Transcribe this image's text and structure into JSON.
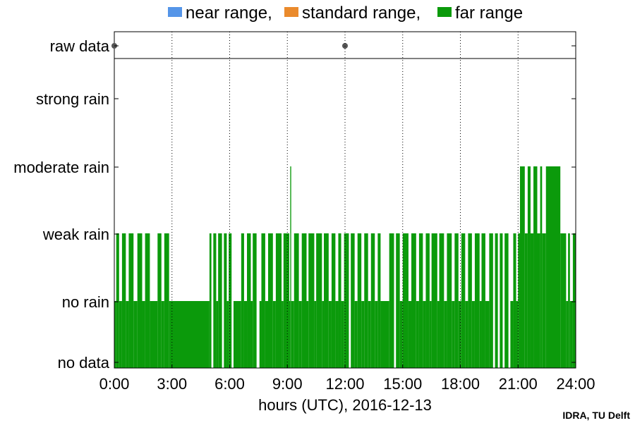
{
  "chart_data": {
    "type": "area",
    "legend": {
      "placement": "top",
      "items": [
        {
          "label": "near range,",
          "color": "#5595e8"
        },
        {
          "label": "standard range,",
          "color": "#ea8a2c"
        },
        {
          "label": "far range",
          "color": "#0b9a0b"
        }
      ]
    },
    "xlabel": "hours (UTC), 2016-12-13",
    "xlim": [
      0,
      24
    ],
    "xticks": [
      0,
      3,
      6,
      9,
      12,
      15,
      18,
      21,
      24
    ],
    "xtick_labels": [
      "0:00",
      "3:00",
      "6:00",
      "9:00",
      "12:00",
      "15:00",
      "18:00",
      "21:00",
      "24:00"
    ],
    "y_levels": [
      "no data",
      "no rain",
      "weak rain",
      "moderate rain",
      "strong rain"
    ],
    "raw_data_label": "raw data",
    "raw_data_points_hours": [
      0,
      12
    ],
    "grid": "vertical dotted at each x tick",
    "series": [
      {
        "name": "far range",
        "color": "#0b9a0b",
        "segments": [
          [
            0.0,
            1
          ],
          [
            0.1,
            2
          ],
          [
            0.25,
            1
          ],
          [
            0.4,
            2
          ],
          [
            0.6,
            1
          ],
          [
            0.75,
            2
          ],
          [
            1.0,
            1
          ],
          [
            1.2,
            2
          ],
          [
            1.45,
            1
          ],
          [
            1.6,
            2
          ],
          [
            1.85,
            1
          ],
          [
            2.25,
            2
          ],
          [
            2.45,
            1
          ],
          [
            2.6,
            2
          ],
          [
            2.85,
            1
          ],
          [
            4.95,
            2
          ],
          [
            5.05,
            0
          ],
          [
            5.15,
            2
          ],
          [
            5.3,
            1
          ],
          [
            5.4,
            2
          ],
          [
            5.6,
            0
          ],
          [
            5.7,
            2
          ],
          [
            5.85,
            1
          ],
          [
            5.95,
            2
          ],
          [
            6.1,
            0
          ],
          [
            6.2,
            1
          ],
          [
            6.6,
            2
          ],
          [
            6.75,
            1
          ],
          [
            6.9,
            2
          ],
          [
            7.1,
            1
          ],
          [
            7.2,
            2
          ],
          [
            7.4,
            0
          ],
          [
            7.55,
            1
          ],
          [
            7.65,
            2
          ],
          [
            7.85,
            1
          ],
          [
            8.0,
            2
          ],
          [
            8.25,
            1
          ],
          [
            8.4,
            2
          ],
          [
            8.7,
            1
          ],
          [
            8.8,
            2
          ],
          [
            9.1,
            1
          ],
          [
            9.15,
            3
          ],
          [
            9.2,
            1
          ],
          [
            9.35,
            2
          ],
          [
            9.6,
            1
          ],
          [
            9.75,
            2
          ],
          [
            10.0,
            1
          ],
          [
            10.1,
            2
          ],
          [
            10.4,
            1
          ],
          [
            10.5,
            2
          ],
          [
            10.8,
            1
          ],
          [
            10.9,
            2
          ],
          [
            11.15,
            1
          ],
          [
            11.3,
            2
          ],
          [
            11.5,
            1
          ],
          [
            11.65,
            2
          ],
          [
            11.8,
            1
          ],
          [
            11.95,
            2
          ],
          [
            12.2,
            0
          ],
          [
            12.3,
            2
          ],
          [
            12.5,
            1
          ],
          [
            12.65,
            2
          ],
          [
            12.85,
            1
          ],
          [
            13.0,
            2
          ],
          [
            13.2,
            1
          ],
          [
            13.35,
            2
          ],
          [
            13.55,
            1
          ],
          [
            13.7,
            2
          ],
          [
            13.85,
            1
          ],
          [
            14.3,
            2
          ],
          [
            14.55,
            0
          ],
          [
            14.65,
            2
          ],
          [
            14.85,
            1
          ],
          [
            15.0,
            2
          ],
          [
            15.3,
            1
          ],
          [
            15.45,
            2
          ],
          [
            15.7,
            1
          ],
          [
            15.85,
            2
          ],
          [
            16.05,
            1
          ],
          [
            16.2,
            2
          ],
          [
            16.4,
            1
          ],
          [
            16.5,
            2
          ],
          [
            16.8,
            1
          ],
          [
            16.9,
            2
          ],
          [
            17.15,
            1
          ],
          [
            17.3,
            2
          ],
          [
            17.55,
            1
          ],
          [
            17.7,
            2
          ],
          [
            17.9,
            1
          ],
          [
            18.05,
            2
          ],
          [
            18.25,
            1
          ],
          [
            18.4,
            2
          ],
          [
            18.6,
            1
          ],
          [
            18.75,
            2
          ],
          [
            19.0,
            1
          ],
          [
            19.1,
            2
          ],
          [
            19.3,
            1
          ],
          [
            19.5,
            2
          ],
          [
            19.7,
            0
          ],
          [
            19.8,
            2
          ],
          [
            19.95,
            0
          ],
          [
            20.05,
            2
          ],
          [
            20.2,
            0
          ],
          [
            20.3,
            2
          ],
          [
            20.5,
            0
          ],
          [
            20.6,
            1
          ],
          [
            20.75,
            2
          ],
          [
            20.9,
            1
          ],
          [
            21.0,
            2
          ],
          [
            21.1,
            3
          ],
          [
            21.35,
            2
          ],
          [
            21.5,
            3
          ],
          [
            21.65,
            2
          ],
          [
            21.8,
            3
          ],
          [
            22.0,
            2
          ],
          [
            22.15,
            3
          ],
          [
            22.25,
            2
          ],
          [
            22.45,
            3
          ],
          [
            23.2,
            2
          ],
          [
            23.5,
            1
          ],
          [
            23.6,
            2
          ],
          [
            23.7,
            1
          ],
          [
            23.85,
            2
          ],
          [
            24.0,
            2
          ]
        ]
      }
    ],
    "credit": "IDRA, TU Delft"
  }
}
